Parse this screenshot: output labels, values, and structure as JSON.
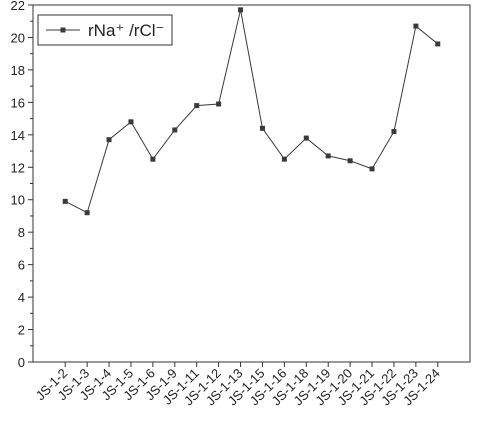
{
  "chart_data": {
    "type": "line",
    "categories": [
      "JS-1-2",
      "JS-1-3",
      "JS-1-4",
      "JS-1-5",
      "JS-1-6",
      "JS-1-9",
      "JS-1-11",
      "JS-1-12",
      "JS-1-13",
      "JS-1-15",
      "JS-1-16",
      "JS-1-18",
      "JS-1-19",
      "JS-1-20",
      "JS-1-21",
      "JS-1-22",
      "JS-1-23",
      "JS-1-24"
    ],
    "series": [
      {
        "name": "rNa⁺ /rCl⁻",
        "color": "#3a3a3a",
        "values": [
          9.9,
          9.2,
          13.7,
          14.8,
          12.5,
          14.3,
          15.8,
          15.9,
          21.7,
          14.4,
          12.5,
          13.8,
          12.7,
          12.4,
          11.9,
          14.2,
          20.7,
          19.6
        ]
      }
    ],
    "ylim": [
      0,
      22
    ],
    "yticks": [
      0,
      2,
      4,
      6,
      8,
      10,
      12,
      14,
      16,
      18,
      20,
      22
    ],
    "legend": "upper-left"
  }
}
